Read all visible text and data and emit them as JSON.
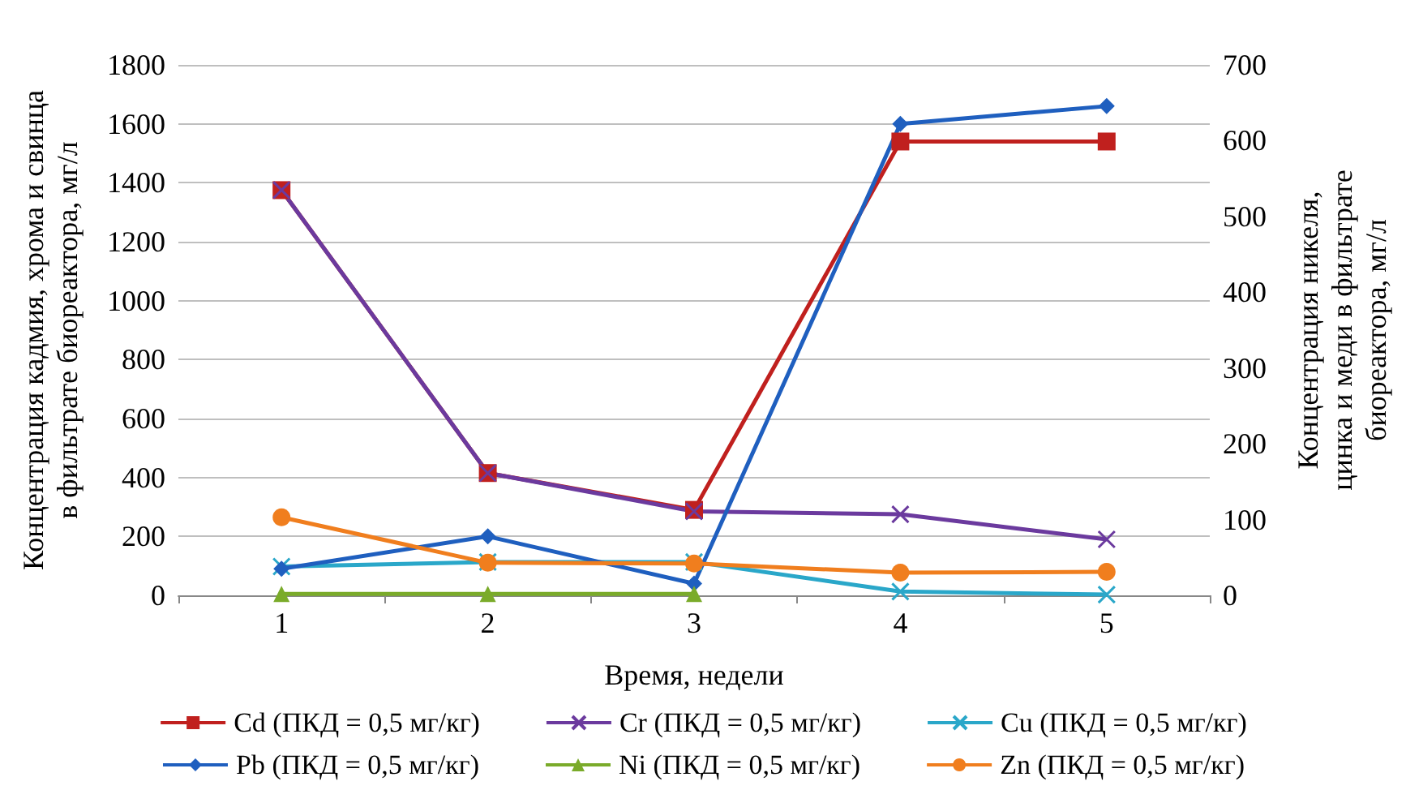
{
  "chart_data": {
    "type": "line",
    "xlabel": "Время, недели",
    "ylabel": "Концентрация кадмия, хрома и свинца\nв фильтрате биореактора, мг/л",
    "y2label": "Концентрация никеля,\nцинка и меди в фильтрате\nбиореактора, мг/л",
    "categories": [
      "1",
      "2",
      "3",
      "4",
      "5"
    ],
    "ylim": [
      0,
      1800
    ],
    "yticks": [
      0,
      200,
      400,
      600,
      800,
      1000,
      1200,
      1400,
      1600,
      1800
    ],
    "y2lim": [
      0,
      700
    ],
    "y2ticks": [
      0,
      100,
      200,
      300,
      400,
      500,
      600,
      700
    ],
    "grid": "y",
    "legend": "bottom",
    "series": [
      {
        "name": "Cd (ПКД = 0,5 мг/кг)",
        "color": "#c0201e",
        "marker": "square",
        "values": [
          1375,
          415,
          290,
          1540,
          1540
        ]
      },
      {
        "name": "Cr (ПКД = 0,5 мг/кг)",
        "color": "#6b3a9e",
        "marker": "cross",
        "values": [
          1375,
          415,
          285,
          275,
          190
        ]
      },
      {
        "name": "Cu (ПКД = 0,5 мг/кг)",
        "color": "#2aa7c9",
        "marker": "cross",
        "axis": "y2",
        "values": [
          38,
          44,
          44,
          5,
          1
        ]
      },
      {
        "name": "Pb (ПКД = 0,5 мг/кг)",
        "color": "#1f5fbf",
        "marker": "diamond",
        "values": [
          90,
          200,
          40,
          1600,
          1660
        ]
      },
      {
        "name": "Ni (ПКД = 0,5 мг/кг)",
        "color": "#7aab2a",
        "marker": "triangle",
        "axis": "y2",
        "values": [
          2,
          2,
          2,
          null,
          null
        ]
      },
      {
        "name": "Zn (ПКД = 0,5 мг/кг)",
        "color": "#f07e1e",
        "marker": "circle",
        "axis": "y2",
        "values": [
          103,
          43,
          42,
          30,
          31
        ]
      }
    ]
  }
}
